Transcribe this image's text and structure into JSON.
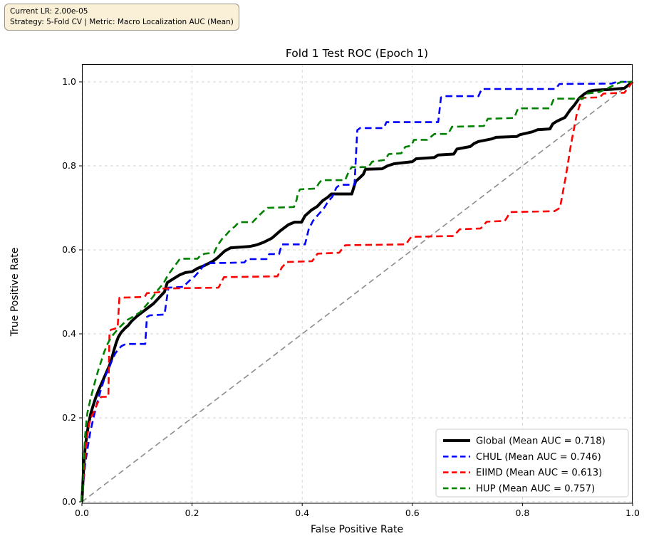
{
  "info_box": {
    "line1": "Current LR: 2.00e-05",
    "line2": "Strategy: 5-Fold CV | Metric: Macro Localization AUC (Mean)"
  },
  "chart_data": {
    "type": "line",
    "title": "Fold 1 Test ROC (Epoch 1)",
    "xlabel": "False Positive Rate",
    "ylabel": "True Positive Rate",
    "xlim": [
      0.0,
      1.0
    ],
    "ylim": [
      0.0,
      1.05
    ],
    "grid": true,
    "legend_position": "lower right",
    "xtick_labels": [
      "0.0",
      "0.2",
      "0.4",
      "0.6",
      "0.8",
      "1.0"
    ],
    "ytick_labels": [
      "0.0",
      "0.2",
      "0.4",
      "0.6",
      "0.8",
      "1.0"
    ],
    "xticks": [
      0.0,
      0.2,
      0.4,
      0.6,
      0.8,
      1.0
    ],
    "yticks": [
      0.0,
      0.2,
      0.4,
      0.6,
      0.8,
      1.0
    ],
    "reference_line": {
      "name": "chance-diagonal",
      "color": "#8c8c8c",
      "style": "dashed",
      "width": 1.6,
      "points": [
        [
          0,
          0
        ],
        [
          1,
          1
        ]
      ]
    },
    "series": [
      {
        "name": "Global",
        "label": "Global (Mean AUC = 0.718)",
        "mean_auc": 0.718,
        "color": "#000000",
        "style": "solid",
        "width": 4,
        "points": [
          [
            0,
            0
          ],
          [
            0.002,
            0.05
          ],
          [
            0.004,
            0.1
          ],
          [
            0.006,
            0.13
          ],
          [
            0.009,
            0.16
          ],
          [
            0.012,
            0.185
          ],
          [
            0.016,
            0.21
          ],
          [
            0.02,
            0.228
          ],
          [
            0.025,
            0.248
          ],
          [
            0.03,
            0.265
          ],
          [
            0.035,
            0.28
          ],
          [
            0.04,
            0.295
          ],
          [
            0.045,
            0.31
          ],
          [
            0.05,
            0.325
          ],
          [
            0.054,
            0.34
          ],
          [
            0.058,
            0.36
          ],
          [
            0.062,
            0.378
          ],
          [
            0.066,
            0.392
          ],
          [
            0.071,
            0.403
          ],
          [
            0.078,
            0.413
          ],
          [
            0.084,
            0.42
          ],
          [
            0.09,
            0.43
          ],
          [
            0.1,
            0.442
          ],
          [
            0.11,
            0.452
          ],
          [
            0.12,
            0.462
          ],
          [
            0.13,
            0.472
          ],
          [
            0.14,
            0.486
          ],
          [
            0.15,
            0.5
          ],
          [
            0.155,
            0.522
          ],
          [
            0.166,
            0.531
          ],
          [
            0.177,
            0.54
          ],
          [
            0.188,
            0.546
          ],
          [
            0.2,
            0.548
          ],
          [
            0.21,
            0.556
          ],
          [
            0.223,
            0.563
          ],
          [
            0.238,
            0.573
          ],
          [
            0.246,
            0.581
          ],
          [
            0.259,
            0.597
          ],
          [
            0.27,
            0.605
          ],
          [
            0.304,
            0.608
          ],
          [
            0.318,
            0.612
          ],
          [
            0.33,
            0.618
          ],
          [
            0.345,
            0.628
          ],
          [
            0.36,
            0.645
          ],
          [
            0.375,
            0.66
          ],
          [
            0.386,
            0.666
          ],
          [
            0.399,
            0.666
          ],
          [
            0.405,
            0.681
          ],
          [
            0.417,
            0.695
          ],
          [
            0.427,
            0.703
          ],
          [
            0.437,
            0.717
          ],
          [
            0.446,
            0.725
          ],
          [
            0.453,
            0.733
          ],
          [
            0.49,
            0.733
          ],
          [
            0.497,
            0.763
          ],
          [
            0.504,
            0.771
          ],
          [
            0.511,
            0.78
          ],
          [
            0.515,
            0.792
          ],
          [
            0.545,
            0.793
          ],
          [
            0.555,
            0.8
          ],
          [
            0.567,
            0.805
          ],
          [
            0.6,
            0.81
          ],
          [
            0.607,
            0.817
          ],
          [
            0.64,
            0.82
          ],
          [
            0.647,
            0.826
          ],
          [
            0.675,
            0.828
          ],
          [
            0.681,
            0.84
          ],
          [
            0.705,
            0.846
          ],
          [
            0.712,
            0.853
          ],
          [
            0.72,
            0.858
          ],
          [
            0.744,
            0.864
          ],
          [
            0.752,
            0.868
          ],
          [
            0.79,
            0.87
          ],
          [
            0.795,
            0.874
          ],
          [
            0.818,
            0.881
          ],
          [
            0.827,
            0.886
          ],
          [
            0.85,
            0.888
          ],
          [
            0.855,
            0.9
          ],
          [
            0.862,
            0.906
          ],
          [
            0.877,
            0.915
          ],
          [
            0.886,
            0.932
          ],
          [
            0.895,
            0.946
          ],
          [
            0.903,
            0.961
          ],
          [
            0.912,
            0.971
          ],
          [
            0.921,
            0.978
          ],
          [
            0.93,
            0.98
          ],
          [
            0.96,
            0.982
          ],
          [
            0.985,
            0.985
          ],
          [
            1.0,
            1.0
          ]
        ]
      },
      {
        "name": "CHUL",
        "label": "CHUL (Mean AUC = 0.746)",
        "mean_auc": 0.746,
        "color": "#0000ff",
        "style": "dashed",
        "width": 2.6,
        "points": [
          [
            0,
            0
          ],
          [
            0.003,
            0.05
          ],
          [
            0.006,
            0.09
          ],
          [
            0.01,
            0.125
          ],
          [
            0.015,
            0.165
          ],
          [
            0.02,
            0.195
          ],
          [
            0.025,
            0.222
          ],
          [
            0.03,
            0.247
          ],
          [
            0.035,
            0.27
          ],
          [
            0.04,
            0.29
          ],
          [
            0.045,
            0.308
          ],
          [
            0.05,
            0.322
          ],
          [
            0.055,
            0.338
          ],
          [
            0.06,
            0.352
          ],
          [
            0.066,
            0.363
          ],
          [
            0.072,
            0.371
          ],
          [
            0.08,
            0.376
          ],
          [
            0.115,
            0.376
          ],
          [
            0.118,
            0.44
          ],
          [
            0.123,
            0.444
          ],
          [
            0.15,
            0.446
          ],
          [
            0.157,
            0.51
          ],
          [
            0.185,
            0.512
          ],
          [
            0.19,
            0.52
          ],
          [
            0.198,
            0.53
          ],
          [
            0.205,
            0.537
          ],
          [
            0.211,
            0.546
          ],
          [
            0.217,
            0.556
          ],
          [
            0.225,
            0.568
          ],
          [
            0.295,
            0.57
          ],
          [
            0.3,
            0.578
          ],
          [
            0.335,
            0.578
          ],
          [
            0.34,
            0.59
          ],
          [
            0.358,
            0.59
          ],
          [
            0.363,
            0.613
          ],
          [
            0.405,
            0.613
          ],
          [
            0.412,
            0.65
          ],
          [
            0.42,
            0.67
          ],
          [
            0.43,
            0.685
          ],
          [
            0.44,
            0.7
          ],
          [
            0.447,
            0.715
          ],
          [
            0.455,
            0.727
          ],
          [
            0.462,
            0.748
          ],
          [
            0.468,
            0.755
          ],
          [
            0.495,
            0.755
          ],
          [
            0.5,
            0.885
          ],
          [
            0.505,
            0.89
          ],
          [
            0.548,
            0.89
          ],
          [
            0.553,
            0.904
          ],
          [
            0.647,
            0.904
          ],
          [
            0.652,
            0.963
          ],
          [
            0.658,
            0.966
          ],
          [
            0.72,
            0.966
          ],
          [
            0.726,
            0.983
          ],
          [
            0.86,
            0.983
          ],
          [
            0.867,
            0.995
          ],
          [
            0.962,
            0.996
          ],
          [
            0.972,
            1.0
          ],
          [
            1.0,
            1.0
          ]
        ]
      },
      {
        "name": "EIIMD",
        "label": "EIIMD (Mean AUC = 0.613)",
        "mean_auc": 0.613,
        "color": "#ff0000",
        "style": "dashed",
        "width": 2.6,
        "points": [
          [
            0,
            0
          ],
          [
            0.003,
            0.06
          ],
          [
            0.006,
            0.11
          ],
          [
            0.009,
            0.15
          ],
          [
            0.012,
            0.18
          ],
          [
            0.016,
            0.2
          ],
          [
            0.02,
            0.21
          ],
          [
            0.025,
            0.225
          ],
          [
            0.03,
            0.24
          ],
          [
            0.035,
            0.25
          ],
          [
            0.048,
            0.25
          ],
          [
            0.05,
            0.405
          ],
          [
            0.053,
            0.41
          ],
          [
            0.06,
            0.412
          ],
          [
            0.062,
            0.417
          ],
          [
            0.065,
            0.417
          ],
          [
            0.068,
            0.486
          ],
          [
            0.114,
            0.488
          ],
          [
            0.118,
            0.497
          ],
          [
            0.14,
            0.499
          ],
          [
            0.146,
            0.508
          ],
          [
            0.248,
            0.51
          ],
          [
            0.258,
            0.535
          ],
          [
            0.355,
            0.537
          ],
          [
            0.363,
            0.558
          ],
          [
            0.372,
            0.571
          ],
          [
            0.418,
            0.573
          ],
          [
            0.428,
            0.591
          ],
          [
            0.467,
            0.593
          ],
          [
            0.478,
            0.611
          ],
          [
            0.588,
            0.613
          ],
          [
            0.598,
            0.631
          ],
          [
            0.675,
            0.633
          ],
          [
            0.686,
            0.649
          ],
          [
            0.724,
            0.651
          ],
          [
            0.735,
            0.667
          ],
          [
            0.768,
            0.669
          ],
          [
            0.778,
            0.69
          ],
          [
            0.858,
            0.692
          ],
          [
            0.868,
            0.7
          ],
          [
            0.878,
            0.77
          ],
          [
            0.888,
            0.85
          ],
          [
            0.898,
            0.92
          ],
          [
            0.908,
            0.962
          ],
          [
            0.94,
            0.963
          ],
          [
            0.947,
            0.972
          ],
          [
            0.985,
            0.974
          ],
          [
            1.0,
            1.0
          ]
        ]
      },
      {
        "name": "HUP",
        "label": "HUP (Mean AUC = 0.757)",
        "mean_auc": 0.757,
        "color": "#008000",
        "style": "dashed",
        "width": 2.6,
        "points": [
          [
            0,
            0
          ],
          [
            0.002,
            0.06
          ],
          [
            0.004,
            0.12
          ],
          [
            0.006,
            0.16
          ],
          [
            0.008,
            0.19
          ],
          [
            0.01,
            0.212
          ],
          [
            0.015,
            0.242
          ],
          [
            0.02,
            0.268
          ],
          [
            0.025,
            0.292
          ],
          [
            0.03,
            0.315
          ],
          [
            0.035,
            0.335
          ],
          [
            0.04,
            0.355
          ],
          [
            0.045,
            0.372
          ],
          [
            0.05,
            0.385
          ],
          [
            0.055,
            0.395
          ],
          [
            0.06,
            0.403
          ],
          [
            0.065,
            0.411
          ],
          [
            0.071,
            0.419
          ],
          [
            0.081,
            0.432
          ],
          [
            0.093,
            0.441
          ],
          [
            0.106,
            0.452
          ],
          [
            0.118,
            0.47
          ],
          [
            0.13,
            0.49
          ],
          [
            0.14,
            0.508
          ],
          [
            0.148,
            0.52
          ],
          [
            0.155,
            0.537
          ],
          [
            0.164,
            0.554
          ],
          [
            0.172,
            0.568
          ],
          [
            0.178,
            0.579
          ],
          [
            0.21,
            0.579
          ],
          [
            0.216,
            0.588
          ],
          [
            0.224,
            0.591
          ],
          [
            0.24,
            0.593
          ],
          [
            0.246,
            0.61
          ],
          [
            0.255,
            0.627
          ],
          [
            0.262,
            0.636
          ],
          [
            0.27,
            0.648
          ],
          [
            0.278,
            0.656
          ],
          [
            0.285,
            0.666
          ],
          [
            0.31,
            0.666
          ],
          [
            0.32,
            0.68
          ],
          [
            0.328,
            0.69
          ],
          [
            0.337,
            0.7
          ],
          [
            0.385,
            0.702
          ],
          [
            0.39,
            0.72
          ],
          [
            0.392,
            0.734
          ],
          [
            0.396,
            0.744
          ],
          [
            0.425,
            0.746
          ],
          [
            0.43,
            0.758
          ],
          [
            0.435,
            0.766
          ],
          [
            0.478,
            0.766
          ],
          [
            0.485,
            0.788
          ],
          [
            0.49,
            0.797
          ],
          [
            0.52,
            0.797
          ],
          [
            0.527,
            0.81
          ],
          [
            0.55,
            0.814
          ],
          [
            0.557,
            0.828
          ],
          [
            0.58,
            0.83
          ],
          [
            0.587,
            0.845
          ],
          [
            0.598,
            0.848
          ],
          [
            0.603,
            0.862
          ],
          [
            0.627,
            0.862
          ],
          [
            0.64,
            0.876
          ],
          [
            0.665,
            0.876
          ],
          [
            0.672,
            0.893
          ],
          [
            0.73,
            0.895
          ],
          [
            0.737,
            0.912
          ],
          [
            0.785,
            0.914
          ],
          [
            0.792,
            0.937
          ],
          [
            0.85,
            0.937
          ],
          [
            0.857,
            0.96
          ],
          [
            0.91,
            0.96
          ],
          [
            0.917,
            0.972
          ],
          [
            0.94,
            0.976
          ],
          [
            0.955,
            0.985
          ],
          [
            0.97,
            0.995
          ],
          [
            0.98,
            1.0
          ],
          [
            1.0,
            1.0
          ]
        ]
      }
    ]
  }
}
